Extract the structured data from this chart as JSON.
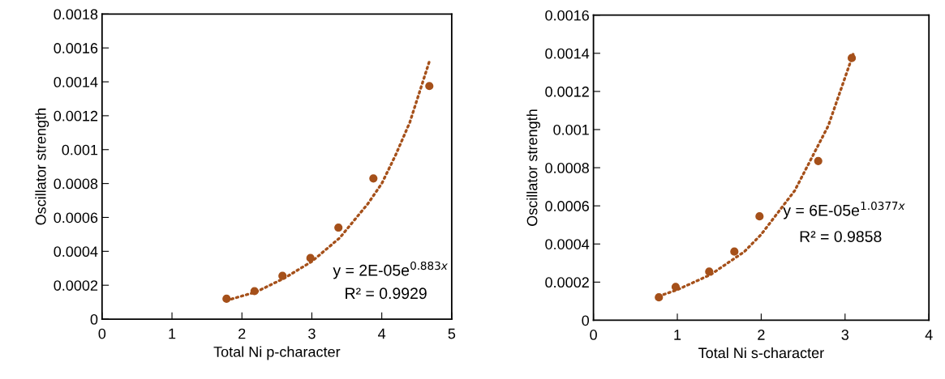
{
  "chart_data": [
    {
      "type": "scatter",
      "xlabel": "Total Ni p-character",
      "ylabel": "Oscillator strength",
      "xlim": [
        0,
        5
      ],
      "xticks": [
        0,
        1,
        2,
        3,
        4,
        5
      ],
      "ylim": [
        0,
        0.0018
      ],
      "yticks": [
        0,
        0.0002,
        0.0004,
        0.0006,
        0.0008,
        0.001,
        0.0012,
        0.0014,
        0.0016,
        0.0018
      ],
      "grid": false,
      "legend": false,
      "series": [
        {
          "color": "#a5501a",
          "marker": "circle",
          "x": [
            1.78,
            2.18,
            2.58,
            2.98,
            3.38,
            3.88,
            4.68
          ],
          "values": [
            0.00012,
            0.000165,
            0.000255,
            0.00036,
            0.00054,
            0.00083,
            0.001375
          ]
        },
        {
          "type": "line",
          "color": "#a5501a",
          "marker": "none",
          "line_style": "dotted",
          "x": [
            1.78,
            2.2,
            2.6,
            3.0,
            3.4,
            3.8,
            4.0,
            4.2,
            4.4,
            4.68
          ],
          "values": [
            0.00011,
            0.00016,
            0.00024,
            0.00034,
            0.00048,
            0.00068,
            0.0008,
            0.00097,
            0.00116,
            0.00152
          ]
        }
      ],
      "annotations": [
        "y = 2E-05e$^{0.883x}$",
        "R² = 0.9929"
      ]
    },
    {
      "type": "scatter",
      "xlabel": "Total Ni s-character",
      "ylabel": "Oscillator strength",
      "xlim": [
        0,
        4
      ],
      "xticks": [
        0,
        1,
        2,
        3,
        4
      ],
      "ylim": [
        0,
        0.0016
      ],
      "yticks": [
        0,
        0.0002,
        0.0004,
        0.0006,
        0.0008,
        0.001,
        0.0012,
        0.0014,
        0.0016
      ],
      "grid": false,
      "legend": false,
      "series": [
        {
          "color": "#a5501a",
          "marker": "circle",
          "x": [
            0.78,
            0.98,
            1.38,
            1.68,
            1.98,
            2.68,
            3.08
          ],
          "values": [
            0.00012,
            0.000175,
            0.000255,
            0.00036,
            0.000545,
            0.000835,
            0.001375
          ]
        },
        {
          "type": "line",
          "color": "#a5501a",
          "marker": "none",
          "line_style": "dotted",
          "x": [
            0.78,
            1.0,
            1.4,
            1.8,
            2.0,
            2.4,
            2.8,
            3.1
          ],
          "values": [
            0.000126,
            0.00016,
            0.00024,
            0.00036,
            0.00045,
            0.00068,
            0.00102,
            0.0014
          ]
        }
      ],
      "annotations": [
        "y = 6E-05e$^{1.0377x}$",
        "R² = 0.9858"
      ]
    }
  ]
}
